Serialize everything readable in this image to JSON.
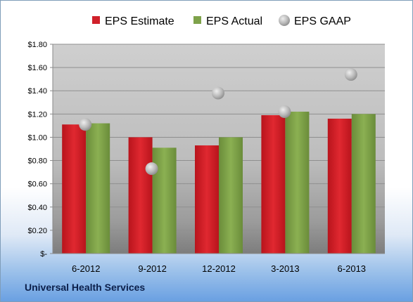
{
  "chart_data": {
    "type": "bar",
    "categories": [
      "6-2012",
      "9-2012",
      "12-2012",
      "3-2013",
      "6-2013"
    ],
    "series": [
      {
        "name": "EPS Estimate",
        "kind": "bar",
        "color": "#d0202a",
        "values": [
          1.11,
          1.0,
          0.93,
          1.19,
          1.16
        ]
      },
      {
        "name": "EPS Actual",
        "kind": "bar",
        "color": "#7ea24a",
        "values": [
          1.12,
          0.91,
          1.0,
          1.22,
          1.2
        ]
      },
      {
        "name": "EPS GAAP",
        "kind": "marker",
        "color": "#b8b8b8",
        "values": [
          1.11,
          0.73,
          1.38,
          1.22,
          1.54
        ]
      }
    ],
    "ylim": [
      0,
      1.8
    ],
    "yticks": [
      0,
      0.2,
      0.4,
      0.6,
      0.8,
      1.0,
      1.2,
      1.4,
      1.6,
      1.8
    ],
    "ytick_labels": [
      "$-",
      "$0.20",
      "$0.40",
      "$0.60",
      "$0.80",
      "$1.00",
      "$1.20",
      "$1.40",
      "$1.60",
      "$1.80"
    ],
    "grid": true,
    "legend_position": "top"
  },
  "footer": {
    "company": "Universal Health Services"
  }
}
